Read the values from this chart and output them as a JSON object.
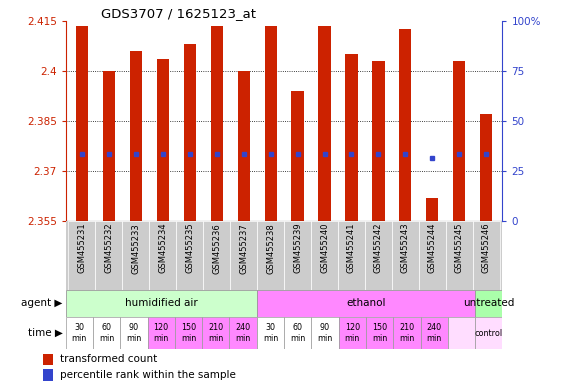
{
  "title": "GDS3707 / 1625123_at",
  "samples": [
    "GSM455231",
    "GSM455232",
    "GSM455233",
    "GSM455234",
    "GSM455235",
    "GSM455236",
    "GSM455237",
    "GSM455238",
    "GSM455239",
    "GSM455240",
    "GSM455241",
    "GSM455242",
    "GSM455243",
    "GSM455244",
    "GSM455245",
    "GSM455246"
  ],
  "bar_tops": [
    2.4135,
    2.4,
    2.406,
    2.4035,
    2.408,
    2.4135,
    2.4,
    2.4135,
    2.394,
    2.4135,
    2.405,
    2.403,
    2.4125,
    2.362,
    2.403,
    2.387
  ],
  "bar_bottom": 2.355,
  "blue_marker_vals": [
    2.375,
    2.375,
    2.375,
    2.375,
    2.375,
    2.375,
    2.375,
    2.375,
    2.375,
    2.375,
    2.375,
    2.375,
    2.375,
    2.374,
    2.375,
    2.375
  ],
  "ylim_left": [
    2.355,
    2.415
  ],
  "yticks_left": [
    2.355,
    2.37,
    2.385,
    2.4,
    2.415
  ],
  "ylim_right": [
    0,
    100
  ],
  "yticks_right": [
    0,
    25,
    50,
    75,
    100
  ],
  "yticks_right_labels": [
    "0",
    "25",
    "50",
    "75",
    "100%"
  ],
  "bar_color": "#cc2200",
  "blue_color": "#3344cc",
  "agent_groups": [
    {
      "label": "humidified air",
      "start": 0,
      "end": 7,
      "color": "#ccffcc"
    },
    {
      "label": "ethanol",
      "start": 7,
      "end": 15,
      "color": "#ff88ff"
    },
    {
      "label": "untreated",
      "start": 15,
      "end": 16,
      "color": "#aaffaa"
    }
  ],
  "time_labels": [
    "30\nmin",
    "60\nmin",
    "90\nmin",
    "120\nmin",
    "150\nmin",
    "210\nmin",
    "240\nmin",
    "30\nmin",
    "60\nmin",
    "90\nmin",
    "120\nmin",
    "150\nmin",
    "210\nmin",
    "240\nmin",
    "",
    "control"
  ],
  "time_colors": [
    "#ffffff",
    "#ffffff",
    "#ffffff",
    "#ff88ff",
    "#ff88ff",
    "#ff88ff",
    "#ff88ff",
    "#ffffff",
    "#ffffff",
    "#ffffff",
    "#ff88ff",
    "#ff88ff",
    "#ff88ff",
    "#ff88ff",
    "#ffddff",
    "#ffddff"
  ],
  "legend_red_label": "transformed count",
  "legend_blue_label": "percentile rank within the sample",
  "sample_bg": "#cccccc",
  "bar_width": 0.45
}
